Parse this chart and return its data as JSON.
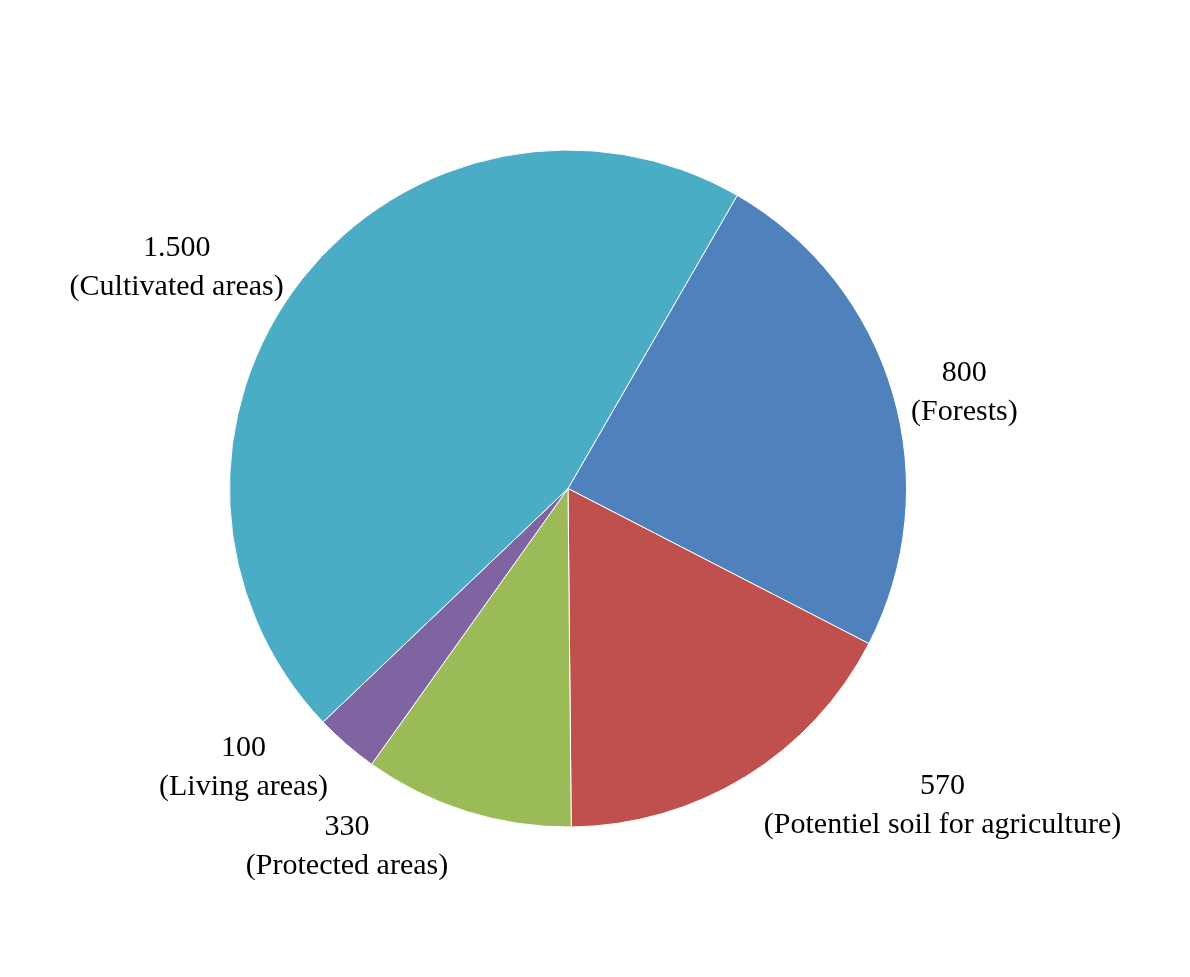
{
  "chart_data": {
    "type": "pie",
    "categories": [
      "(Forests)",
      "(Potentiel soil for agriculture)",
      "(Protected areas)",
      "(Living areas)",
      "(Cultivated areas)"
    ],
    "values": [
      800,
      570,
      330,
      100,
      1500
    ],
    "value_labels": [
      "800",
      "570",
      "330",
      "100",
      "1.500"
    ],
    "colors": [
      "#4f81bd",
      "#c0504d",
      "#9bbb59",
      "#8064a2",
      "#4bacc6"
    ],
    "legend": false
  }
}
